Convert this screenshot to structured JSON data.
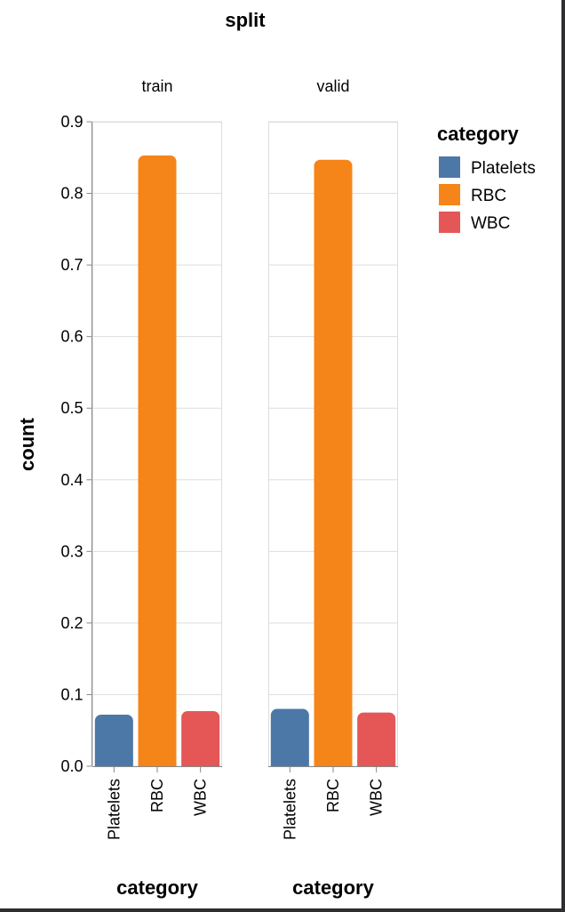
{
  "chart_data": {
    "type": "bar",
    "title": "split",
    "facets": [
      "train",
      "valid"
    ],
    "categories": [
      "Platelets",
      "RBC",
      "WBC"
    ],
    "series": [
      {
        "name": "train",
        "values": [
          0.072,
          0.853,
          0.077
        ]
      },
      {
        "name": "valid",
        "values": [
          0.08,
          0.847,
          0.075
        ]
      }
    ],
    "xlabel": "category",
    "ylabel": "count",
    "ylim": [
      0,
      0.9
    ],
    "yticks": [
      "0.0",
      "0.1",
      "0.2",
      "0.3",
      "0.4",
      "0.5",
      "0.6",
      "0.7",
      "0.8",
      "0.9"
    ],
    "grid": true,
    "legend": {
      "title": "category",
      "placement": "right",
      "entries": [
        "Platelets",
        "RBC",
        "WBC"
      ]
    },
    "colors": {
      "Platelets": "#4c78a8",
      "RBC": "#f58518",
      "WBC": "#e45756"
    }
  }
}
